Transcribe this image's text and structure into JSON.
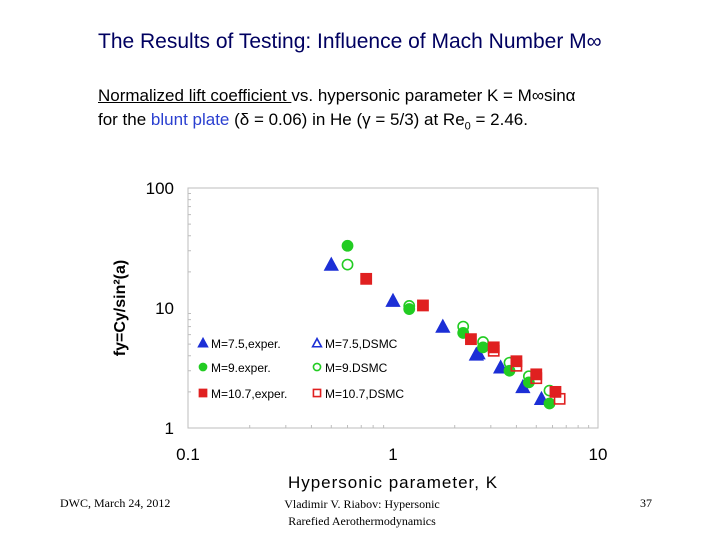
{
  "slide": {
    "title": "The Results of Testing: Influence of Mach Number M∞",
    "subtitle_line1": {
      "underlined": "Normalized lift coefficient ",
      "rest": "vs. hypersonic parameter K = M∞sinα"
    },
    "subtitle_line2": {
      "pre": "for the ",
      "blue": "blunt plate",
      "mid": " (δ = 0.06) in He (γ = 5/3) at Re",
      "sub": "0",
      "post": " = 2.46."
    }
  },
  "footer": {
    "left": "DWC, March 24, 2012",
    "middle_line1": "Vladimir V. Riabov: Hypersonic",
    "middle_line2": "Rarefied Aerothermodynamics",
    "page": "37"
  },
  "colors": {
    "blue": "#1c2fd6",
    "green": "#22cc22",
    "red": "#e02020",
    "title": "#000060"
  },
  "chart_data": {
    "type": "scatter",
    "xscale": "log",
    "yscale": "log",
    "xlim": [
      0.1,
      10
    ],
    "ylim": [
      1,
      100
    ],
    "xlabel": "Hypersonic parameter, K",
    "ylabel": "fy=Cy/sin²(a)",
    "xticks": [
      "0.1",
      "1",
      "10"
    ],
    "yticks": [
      "1",
      "10",
      "100"
    ],
    "grid": false,
    "legend_position": "lower-left inside",
    "series": [
      {
        "name": "M=7.5,exper.",
        "marker": "triangle",
        "fill": true,
        "color": "#1c2fd6",
        "points": [
          [
            0.5,
            23
          ],
          [
            1.0,
            11.5
          ],
          [
            1.75,
            7.0
          ],
          [
            2.6,
            4.2
          ],
          [
            3.35,
            3.2
          ],
          [
            4.3,
            2.2
          ],
          [
            5.3,
            1.75
          ]
        ]
      },
      {
        "name": "M=7.5,DSMC",
        "marker": "triangle",
        "fill": false,
        "color": "#1c2fd6",
        "points": [
          [
            2.55,
            4.1
          ]
        ]
      },
      {
        "name": "M=9.exper.",
        "marker": "circle",
        "fill": true,
        "color": "#22cc22",
        "points": [
          [
            0.6,
            33
          ],
          [
            1.2,
            9.8
          ],
          [
            2.2,
            6.2
          ],
          [
            2.75,
            4.7
          ],
          [
            3.7,
            3.0
          ],
          [
            4.6,
            2.4
          ],
          [
            5.8,
            1.6
          ]
        ]
      },
      {
        "name": "M=9.DSMC",
        "marker": "circle",
        "fill": false,
        "color": "#22cc22",
        "points": [
          [
            0.6,
            23
          ],
          [
            1.2,
            10.4
          ],
          [
            2.2,
            7.0
          ],
          [
            2.75,
            5.2
          ],
          [
            3.7,
            3.5
          ],
          [
            4.6,
            2.7
          ],
          [
            5.8,
            2.05
          ]
        ]
      },
      {
        "name": "M=10.7,exper.",
        "marker": "square",
        "fill": true,
        "color": "#e02020",
        "points": [
          [
            0.74,
            17.5
          ],
          [
            1.4,
            10.5
          ],
          [
            2.4,
            5.5
          ],
          [
            3.1,
            4.7
          ],
          [
            4.0,
            3.6
          ],
          [
            5.0,
            2.8
          ],
          [
            6.2,
            2.0
          ]
        ]
      },
      {
        "name": "M=10.7,DSMC",
        "marker": "square",
        "fill": false,
        "color": "#e02020",
        "points": [
          [
            3.1,
            4.4
          ],
          [
            4.0,
            3.3
          ],
          [
            5.0,
            2.6
          ],
          [
            6.5,
            1.75
          ]
        ]
      }
    ]
  }
}
